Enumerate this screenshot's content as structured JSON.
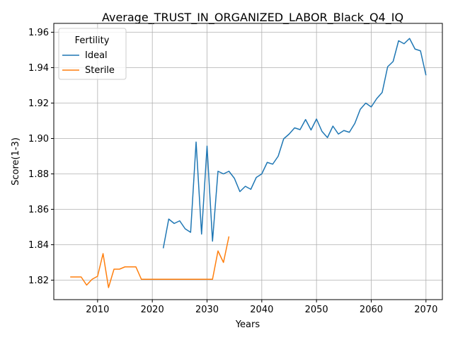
{
  "chart_data": {
    "type": "line",
    "title": "Average_TRUST_IN_ORGANIZED_LABOR_Black_Q4_IQ",
    "xlabel": "Years",
    "ylabel": "Score(1-3)",
    "xlim": [
      2002,
      2073
    ],
    "ylim": [
      1.809,
      1.965
    ],
    "xticks": [
      2010,
      2020,
      2030,
      2040,
      2050,
      2060,
      2070
    ],
    "yticks": [
      1.82,
      1.84,
      1.86,
      1.88,
      1.9,
      1.92,
      1.94,
      1.96
    ],
    "ytick_labels": [
      "1.82",
      "1.84",
      "1.86",
      "1.88",
      "1.90",
      "1.92",
      "1.94",
      "1.96"
    ],
    "grid": true,
    "legend": {
      "title": "Fertility",
      "placement": "upper-left"
    },
    "series": [
      {
        "name": "Ideal",
        "color": "#1f77b4",
        "x": [
          2022,
          2023,
          2024,
          2025,
          2026,
          2027,
          2028,
          2029,
          2030,
          2031,
          2032,
          2033,
          2034,
          2035,
          2036,
          2037,
          2038,
          2039,
          2040,
          2041,
          2042,
          2043,
          2044,
          2045,
          2046,
          2047,
          2048,
          2049,
          2050,
          2051,
          2052,
          2053,
          2054,
          2055,
          2056,
          2057,
          2058,
          2059,
          2060,
          2061,
          2062,
          2063,
          2064,
          2065,
          2066,
          2067,
          2068,
          2069,
          2070
        ],
        "y": [
          1.838,
          1.8545,
          1.852,
          1.8535,
          1.849,
          1.847,
          1.898,
          1.846,
          1.8957,
          1.842,
          1.8815,
          1.88,
          1.8815,
          1.8775,
          1.87,
          1.873,
          1.8713,
          1.878,
          1.88,
          1.8865,
          1.8855,
          1.89,
          1.8998,
          1.9025,
          1.906,
          1.905,
          1.9107,
          1.9048,
          1.911,
          1.904,
          1.9005,
          1.907,
          1.9025,
          1.9045,
          1.9035,
          1.9085,
          1.9165,
          1.92,
          1.9178,
          1.9225,
          1.926,
          1.9405,
          1.9435,
          1.9552,
          1.9535,
          1.9565,
          1.9505,
          1.9495,
          1.9357
        ]
      },
      {
        "name": "Sterile",
        "color": "#ff7f0e",
        "x": [
          2005,
          2006,
          2007,
          2008,
          2009,
          2010,
          2011,
          2012,
          2013,
          2014,
          2015,
          2016,
          2017,
          2018,
          2019,
          2020,
          2021,
          2022,
          2023,
          2024,
          2025,
          2026,
          2027,
          2028,
          2029,
          2030,
          2031,
          2032,
          2033,
          2034
        ],
        "y": [
          1.8218,
          1.8218,
          1.8218,
          1.8172,
          1.8205,
          1.8222,
          1.835,
          1.8158,
          1.8262,
          1.8262,
          1.8275,
          1.8275,
          1.8275,
          1.8205,
          1.8205,
          1.8205,
          1.8205,
          1.8205,
          1.8205,
          1.8205,
          1.8205,
          1.8205,
          1.8205,
          1.8205,
          1.8205,
          1.8205,
          1.8205,
          1.8365,
          1.83,
          1.8447
        ]
      }
    ]
  }
}
